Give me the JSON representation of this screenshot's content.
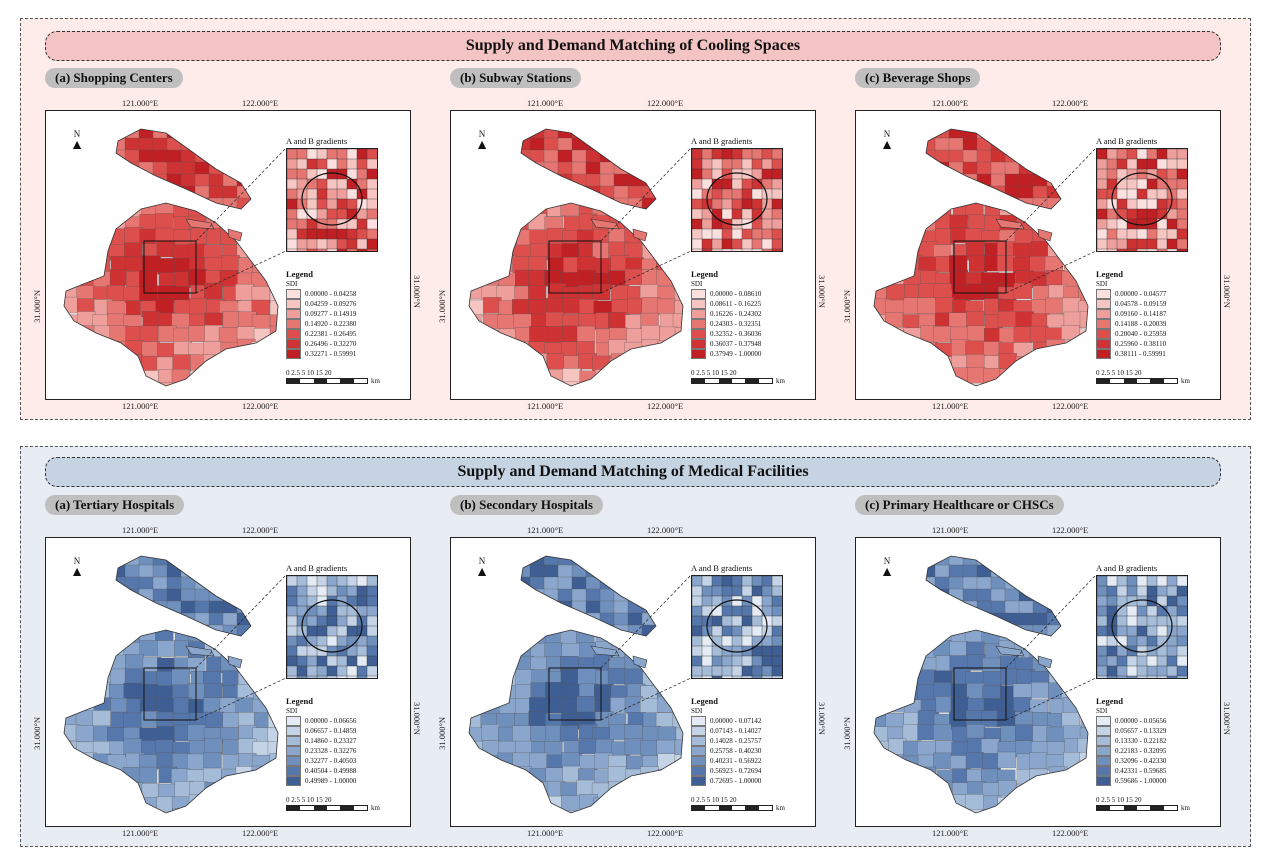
{
  "sections": {
    "cooling": {
      "title": "Supply and Demand Matching of Cooling Spaces",
      "palette": [
        "#fbe0df",
        "#f6c5c2",
        "#ef9f9b",
        "#e67672",
        "#dc4f4d",
        "#cf3233",
        "#c01f24"
      ],
      "panels": [
        {
          "label": "(a) Shopping Centers",
          "legend_values": [
            "0.00000 - 0.04258",
            "0.04259 - 0.09276",
            "0.09277 - 0.14919",
            "0.14920 - 0.22380",
            "0.22381 - 0.26495",
            "0.26496 - 0.32270",
            "0.32271 - 0.59991"
          ],
          "scale_unit": "km"
        },
        {
          "label": "(b) Subway Stations",
          "legend_values": [
            "0.00000 - 0.08610",
            "0.08611 - 0.16225",
            "0.16226 - 0.24302",
            "0.24303 - 0.32351",
            "0.32352 - 0.36036",
            "0.36037 - 0.37948",
            "0.37949 - 1.00000"
          ],
          "scale_unit": "km"
        },
        {
          "label": "(c) Beverage Shops",
          "legend_values": [
            "0.00000 - 0.04577",
            "0.04578 - 0.09159",
            "0.09160 - 0.14187",
            "0.14188 - 0.20039",
            "0.20040 - 0.25959",
            "0.25960 - 0.38110",
            "0.38111 - 0.59991"
          ],
          "scale_unit": "km"
        }
      ]
    },
    "medical": {
      "title": "Supply and Demand Matching of Medical Facilities",
      "palette": [
        "#e4ebf4",
        "#c4d3e6",
        "#a5bcd9",
        "#8aa6cc",
        "#6f8fbd",
        "#5677ab",
        "#3f5f94"
      ],
      "panels": [
        {
          "label": "(a) Tertiary Hospitals",
          "legend_values": [
            "0.00000 - 0.06656",
            "0.06657 - 0.14859",
            "0.14860 - 0.23327",
            "0.23328 - 0.32276",
            "0.32277 - 0.40503",
            "0.40504 - 0.49988",
            "0.49989 - 1.00000"
          ],
          "scale_unit": "km"
        },
        {
          "label": "(b) Secondary Hospitals",
          "legend_values": [
            "0.00000 - 0.07142",
            "0.07143 - 0.14027",
            "0.14028 - 0.25757",
            "0.25758 - 0.40230",
            "0.40231 - 0.56922",
            "0.56923 - 0.72694",
            "0.72695 - 1.00000"
          ],
          "scale_unit": "km"
        },
        {
          "label": "(c) Primary Healthcare or CHSCs",
          "legend_values": [
            "0.00000 - 0.05656",
            "0.05657 - 0.13329",
            "0.13330 - 0.22182",
            "0.22183 - 0.32095",
            "0.32096 - 0.42330",
            "0.42331 - 0.59685",
            "0.59686 - 1.00000"
          ],
          "scale_unit": "km"
        }
      ]
    }
  },
  "map_labels": {
    "lon_left": "121.000°E",
    "lon_right": "122.000°E",
    "lat": "31.000°N",
    "north": "N",
    "inset_title": "A and B gradients",
    "legend_title": "Legend",
    "legend_subtitle": "SDI",
    "scale_ticks": "0 2.5 5    10    15    20"
  }
}
